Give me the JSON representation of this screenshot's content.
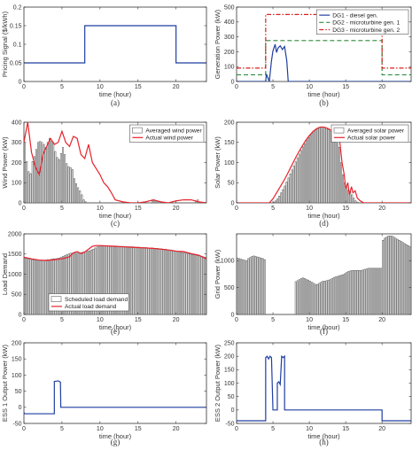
{
  "chart_data": [
    {
      "type": "line",
      "caption": "(a)",
      "xlabel": "time (hour)",
      "ylabel": "Pricing Signal ($/kWh)",
      "xlim": [
        0,
        24
      ],
      "ylim": [
        0,
        0.2
      ],
      "xticks": [
        0,
        5,
        10,
        15,
        20
      ],
      "yticks": [
        0,
        0.05,
        0.1,
        0.15,
        0.2
      ],
      "xtick_labels": [
        "0",
        "5",
        "10",
        "15",
        "20"
      ],
      "ytick_labels": [
        "0",
        "0.05",
        "0.1",
        "0.15",
        "0.2"
      ],
      "series": [
        {
          "color": "#1f3fa0",
          "dash": "",
          "x": [
            0,
            8,
            8,
            20,
            20,
            24
          ],
          "y": [
            0.05,
            0.05,
            0.15,
            0.15,
            0.05,
            0.05
          ]
        }
      ]
    },
    {
      "type": "line",
      "caption": "(b)",
      "xlabel": "time (hour)",
      "ylabel": "Generation Power (kW)",
      "xlim": [
        0,
        24
      ],
      "ylim": [
        0,
        500
      ],
      "xticks": [
        0,
        5,
        10,
        15,
        20
      ],
      "yticks": [
        0,
        100,
        200,
        300,
        400,
        500
      ],
      "xtick_labels": [
        "0",
        "5",
        "10",
        "15",
        "20"
      ],
      "ytick_labels": [
        "0",
        "100",
        "200",
        "300",
        "400",
        "500"
      ],
      "legend": "top-right",
      "series": [
        {
          "name": "DG1 - diesel gen.",
          "color": "#1f3fa0",
          "dash": "",
          "x": [
            0,
            4,
            4.1,
            4.5,
            4.8,
            5,
            5.3,
            5.5,
            5.7,
            6,
            6.3,
            6.6,
            6.9,
            7.1,
            7.4,
            24
          ],
          "y": [
            0,
            0,
            50,
            0,
            140,
            205,
            250,
            195,
            225,
            240,
            215,
            235,
            140,
            0,
            0,
            0
          ]
        },
        {
          "name": "DG2 - microturbine gen. 1",
          "color": "#2e8b3a",
          "dash": "5,3",
          "x": [
            0,
            4,
            4,
            20,
            20,
            24
          ],
          "y": [
            45,
            45,
            275,
            275,
            45,
            45
          ]
        },
        {
          "name": "DG3 - microturbine gen. 2",
          "color": "#d62020",
          "dash": "5,2,1.5,2",
          "x": [
            0,
            4,
            4,
            20,
            20,
            24
          ],
          "y": [
            90,
            90,
            450,
            450,
            90,
            90
          ]
        }
      ]
    },
    {
      "type": "bar",
      "caption": "(c)",
      "xlabel": "time (hour)",
      "ylabel": "Wind Power (kW)",
      "xlim": [
        0,
        24
      ],
      "ylim": [
        0,
        400
      ],
      "xticks": [
        0,
        5,
        10,
        15,
        20
      ],
      "yticks": [
        0,
        100,
        200,
        300,
        400
      ],
      "xtick_labels": [
        "0",
        "5",
        "10",
        "15",
        "20"
      ],
      "ytick_labels": [
        "0",
        "100",
        "200",
        "300",
        "400"
      ],
      "legend": "top-right",
      "bar_series_name": "Averaged wind power",
      "bars": [
        295,
        205,
        155,
        145,
        205,
        230,
        265,
        300,
        305,
        300,
        290,
        275,
        300,
        320,
        305,
        300,
        255,
        225,
        215,
        245,
        275,
        240,
        195,
        180,
        175,
        165,
        120,
        95,
        75,
        60,
        40,
        15,
        5,
        0,
        0,
        0,
        0,
        0,
        0,
        0,
        0,
        0,
        0,
        0,
        0,
        0,
        0,
        0,
        0,
        0,
        0,
        0,
        0,
        0,
        0,
        0,
        0,
        0,
        0,
        0,
        0,
        0,
        0,
        0,
        0,
        0,
        0,
        10,
        15,
        10,
        5,
        0,
        0,
        0,
        0,
        0,
        0,
        0,
        0,
        0,
        0,
        0,
        0,
        0,
        0,
        0,
        0,
        0,
        0,
        0,
        10,
        15,
        5,
        0,
        0,
        0
      ],
      "series": [
        {
          "name": "Actual wind power",
          "color": "#e8222b",
          "dash": "",
          "x": [
            0,
            0.5,
            1,
            1.5,
            2,
            2.5,
            3,
            3.5,
            4,
            4.5,
            5,
            5.5,
            6,
            6.5,
            7,
            7.5,
            8,
            8.5,
            9,
            9.5,
            10,
            10.5,
            11,
            11.5,
            12,
            13,
            14,
            15,
            16,
            17,
            18,
            19,
            20,
            21,
            22,
            23,
            24
          ],
          "y": [
            300,
            400,
            250,
            180,
            140,
            240,
            280,
            320,
            290,
            300,
            355,
            300,
            280,
            330,
            320,
            240,
            220,
            290,
            200,
            170,
            140,
            100,
            80,
            50,
            15,
            5,
            0,
            0,
            5,
            15,
            5,
            0,
            10,
            15,
            15,
            5,
            0
          ]
        }
      ]
    },
    {
      "type": "bar",
      "caption": "(d)",
      "xlabel": "time (hour)",
      "ylabel": "Solar Power (kW)",
      "xlim": [
        0,
        24
      ],
      "ylim": [
        0,
        200
      ],
      "xticks": [
        0,
        5,
        10,
        15,
        20
      ],
      "yticks": [
        0,
        50,
        100,
        150,
        200
      ],
      "xtick_labels": [
        "0",
        "5",
        "10",
        "15",
        "20"
      ],
      "ytick_labels": [
        "0",
        "50",
        "100",
        "150",
        "200"
      ],
      "legend": "top-right",
      "bar_series_name": "Averaged solar power",
      "bars": [
        0,
        0,
        0,
        0,
        0,
        0,
        0,
        0,
        0,
        0,
        0,
        0,
        0,
        0,
        0,
        0,
        0,
        0,
        0,
        0,
        2,
        5,
        10,
        17,
        25,
        33,
        42,
        52,
        62,
        72,
        82,
        92,
        102,
        112,
        121,
        130,
        139,
        147,
        155,
        162,
        168,
        173,
        178,
        182,
        185,
        187,
        188,
        188,
        187,
        185,
        182,
        178,
        172,
        165,
        158,
        148,
        138,
        100,
        70,
        50,
        38,
        32,
        28,
        20,
        12,
        5,
        2,
        0,
        0,
        0,
        0,
        0,
        0,
        0,
        0,
        0,
        0,
        0,
        0,
        0,
        0,
        0,
        0,
        0,
        0,
        0,
        0,
        0,
        0,
        0,
        0,
        0,
        0,
        0,
        0,
        0
      ],
      "series": [
        {
          "name": "Actual solar power",
          "color": "#e8222b",
          "dash": "",
          "x": [
            0,
            4.5,
            5,
            5.5,
            6,
            6.5,
            7,
            7.5,
            8,
            8.5,
            9,
            9.5,
            10,
            10.5,
            11,
            11.5,
            12,
            12.5,
            13,
            13.5,
            14,
            14.2,
            14.5,
            14.8,
            15,
            15.3,
            15.5,
            15.8,
            16,
            16.3,
            16.6,
            17,
            17.5,
            24
          ],
          "y": [
            0,
            0,
            10,
            25,
            40,
            55,
            72,
            90,
            108,
            125,
            140,
            155,
            167,
            177,
            184,
            188,
            188,
            185,
            180,
            172,
            160,
            150,
            100,
            70,
            35,
            50,
            20,
            40,
            25,
            30,
            12,
            5,
            0,
            0
          ]
        }
      ]
    },
    {
      "type": "bar",
      "caption": "(e)",
      "xlabel": "time (hour)",
      "ylabel": "Load Demand",
      "xlim": [
        0,
        24
      ],
      "ylim": [
        0,
        2000
      ],
      "xticks": [
        0,
        5,
        10,
        15,
        20
      ],
      "yticks": [
        0,
        500,
        1000,
        1500,
        2000
      ],
      "xtick_labels": [
        "0",
        "5",
        "10",
        "15",
        "20"
      ],
      "ytick_labels": [
        "0",
        "500",
        "1000",
        "1500",
        "2000"
      ],
      "legend": "bottom-left",
      "bar_series_name": "Scheduled load demand",
      "bars": [
        1400,
        1390,
        1380,
        1370,
        1360,
        1355,
        1350,
        1345,
        1340,
        1340,
        1345,
        1350,
        1360,
        1360,
        1370,
        1380,
        1380,
        1390,
        1400,
        1420,
        1440,
        1460,
        1480,
        1500,
        1520,
        1520,
        1520,
        1520,
        1525,
        1530,
        1540,
        1550,
        1560,
        1570,
        1580,
        1600,
        1620,
        1650,
        1680,
        1690,
        1700,
        1700,
        1700,
        1700,
        1700,
        1700,
        1700,
        1700,
        1700,
        1690,
        1690,
        1690,
        1690,
        1680,
        1680,
        1680,
        1680,
        1680,
        1670,
        1670,
        1670,
        1660,
        1660,
        1660,
        1660,
        1650,
        1650,
        1650,
        1640,
        1640,
        1640,
        1630,
        1630,
        1620,
        1620,
        1610,
        1600,
        1600,
        1590,
        1580,
        1570,
        1560,
        1550,
        1540,
        1530,
        1520,
        1510,
        1500,
        1490,
        1480,
        1470,
        1460,
        1450,
        1440,
        1430,
        1420
      ],
      "series": [
        {
          "name": "Actual load demand",
          "color": "#e8222b",
          "dash": "",
          "x": [
            0,
            1,
            2,
            3,
            4,
            5,
            6,
            6.5,
            7,
            7.5,
            8,
            8.5,
            9,
            9.5,
            10,
            11,
            12,
            13,
            14,
            15,
            16,
            17,
            18,
            19,
            20,
            21,
            22,
            23,
            24
          ],
          "y": [
            1420,
            1380,
            1350,
            1340,
            1360,
            1380,
            1430,
            1530,
            1560,
            1510,
            1550,
            1620,
            1690,
            1710,
            1710,
            1700,
            1690,
            1680,
            1670,
            1660,
            1650,
            1640,
            1620,
            1600,
            1570,
            1560,
            1510,
            1470,
            1380
          ]
        }
      ]
    },
    {
      "type": "bar",
      "caption": "(f)",
      "xlabel": "time (hour)",
      "ylabel": "Grid Power (kW)",
      "xlim": [
        0,
        24
      ],
      "ylim": [
        0,
        1500
      ],
      "xticks": [
        0,
        5,
        10,
        15,
        20
      ],
      "yticks": [
        0,
        500,
        1000
      ],
      "xtick_labels": [
        "0",
        "5",
        "10",
        "15",
        "20"
      ],
      "ytick_labels": [
        "0",
        "500",
        "1000"
      ],
      "bars": [
        1050,
        1040,
        1030,
        1020,
        1010,
        1000,
        1040,
        1060,
        1080,
        1090,
        1080,
        1070,
        1060,
        1050,
        1040,
        1020,
        0,
        0,
        0,
        0,
        0,
        0,
        0,
        0,
        0,
        0,
        0,
        0,
        0,
        0,
        0,
        0,
        610,
        630,
        650,
        670,
        680,
        670,
        650,
        640,
        620,
        600,
        580,
        560,
        560,
        580,
        600,
        620,
        620,
        630,
        640,
        650,
        670,
        690,
        700,
        710,
        720,
        730,
        740,
        760,
        780,
        800,
        810,
        820,
        820,
        820,
        820,
        820,
        820,
        830,
        840,
        850,
        860,
        860,
        860,
        860,
        860,
        860,
        860,
        860,
        1380,
        1420,
        1440,
        1460,
        1460,
        1460,
        1440,
        1420,
        1400,
        1380,
        1360,
        1340,
        1320,
        1300,
        1280,
        1260
      ]
    },
    {
      "type": "line",
      "caption": "(g)",
      "xlabel": "time (hour)",
      "ylabel": "ESS 1 Output Power (kW)",
      "xlim": [
        0,
        24
      ],
      "ylim": [
        -50,
        200
      ],
      "xticks": [
        0,
        5,
        10,
        15,
        20
      ],
      "yticks": [
        -50,
        0,
        50,
        100,
        150,
        200
      ],
      "xtick_labels": [
        "0",
        "5",
        "10",
        "15",
        "20"
      ],
      "ytick_labels": [
        "-50",
        "0",
        "50",
        "100",
        "150",
        "200"
      ],
      "series": [
        {
          "color": "#1f3fa0",
          "dash": "",
          "x": [
            0,
            0.05,
            4,
            4,
            4.5,
            4.8,
            4.85,
            5,
            24
          ],
          "y": [
            -15,
            -20,
            -20,
            80,
            82,
            78,
            0,
            0,
            0
          ]
        }
      ]
    },
    {
      "type": "line",
      "caption": "(h)",
      "xlabel": "time (hour)",
      "ylabel": "ESS 2 Output Power (kW)",
      "xlim": [
        0,
        24
      ],
      "ylim": [
        -50,
        250
      ],
      "xticks": [
        0,
        5,
        10,
        15,
        20
      ],
      "yticks": [
        -50,
        0,
        50,
        100,
        150,
        200,
        250
      ],
      "xtick_labels": [
        "0",
        "5",
        "10",
        "15",
        "20"
      ],
      "ytick_labels": [
        "-50",
        "0",
        "50",
        "100",
        "150",
        "200",
        "250"
      ],
      "series": [
        {
          "color": "#1f3fa0",
          "dash": "",
          "x": [
            0,
            4,
            4,
            4.2,
            4.4,
            4.6,
            4.8,
            5.0,
            5.0,
            5.4,
            5.6,
            5.6,
            5.8,
            6.0,
            6.2,
            6.4,
            6.6,
            6.6,
            20,
            20,
            24
          ],
          "y": [
            -40,
            -40,
            195,
            200,
            190,
            200,
            195,
            0,
            0,
            0,
            0,
            100,
            105,
            95,
            200,
            195,
            200,
            0,
            0,
            -40,
            -40
          ]
        }
      ]
    }
  ]
}
